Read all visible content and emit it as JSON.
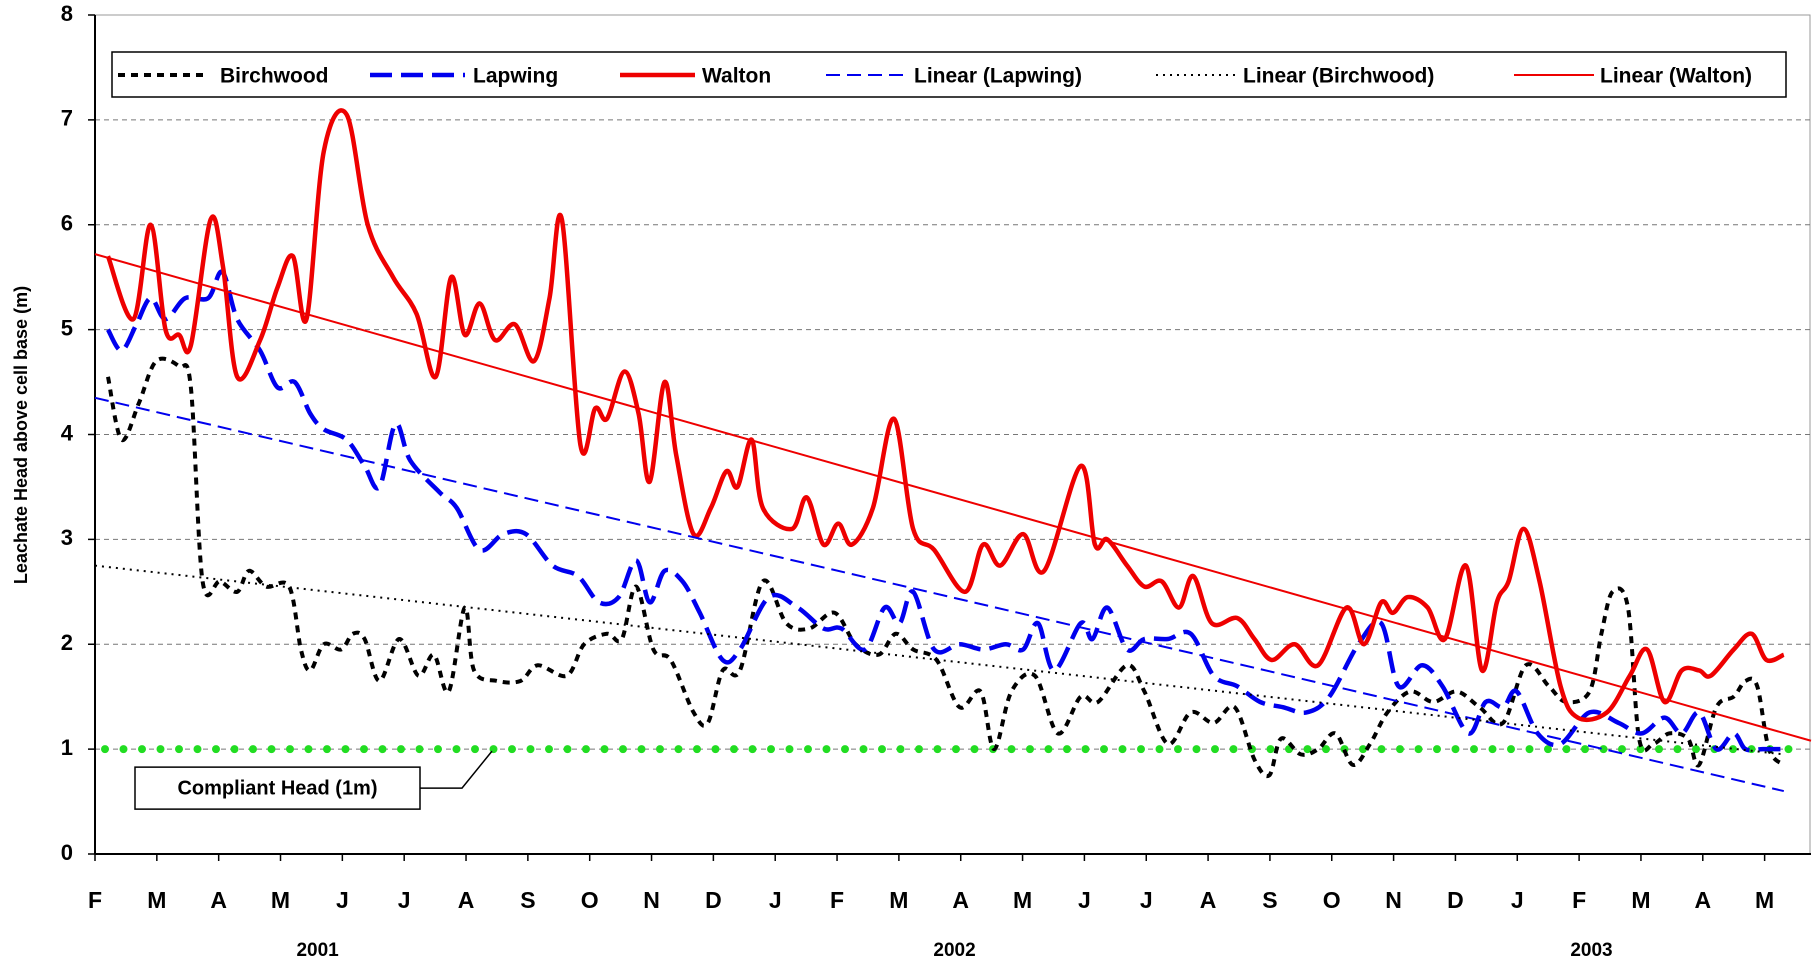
{
  "chart_data": {
    "type": "line",
    "y_label": "Leachate Head above cell base (m)",
    "xlim": [
      0,
      27.75
    ],
    "xticks": [
      {
        "value": 0,
        "label": "F"
      },
      {
        "value": 1,
        "label": "M"
      },
      {
        "value": 2,
        "label": "A"
      },
      {
        "value": 3,
        "label": "M"
      },
      {
        "value": 4,
        "label": "J"
      },
      {
        "value": 5,
        "label": "J"
      },
      {
        "value": 6,
        "label": "A"
      },
      {
        "value": 7,
        "label": "S"
      },
      {
        "value": 8,
        "label": "O"
      },
      {
        "value": 9,
        "label": "N"
      },
      {
        "value": 10,
        "label": "D"
      },
      {
        "value": 11,
        "label": "J"
      },
      {
        "value": 12,
        "label": "F"
      },
      {
        "value": 13,
        "label": "M"
      },
      {
        "value": 14,
        "label": "A"
      },
      {
        "value": 15,
        "label": "M"
      },
      {
        "value": 16,
        "label": "J"
      },
      {
        "value": 17,
        "label": "J"
      },
      {
        "value": 18,
        "label": "A"
      },
      {
        "value": 19,
        "label": "S"
      },
      {
        "value": 20,
        "label": "O"
      },
      {
        "value": 21,
        "label": "N"
      },
      {
        "value": 22,
        "label": "D"
      },
      {
        "value": 23,
        "label": "J"
      },
      {
        "value": 24,
        "label": "F"
      },
      {
        "value": 25,
        "label": "M"
      },
      {
        "value": 26,
        "label": "A"
      },
      {
        "value": 27,
        "label": "M"
      }
    ],
    "year_labels": [
      {
        "value": 3.6,
        "label": "2001"
      },
      {
        "value": 13.9,
        "label": "2002"
      },
      {
        "value": 24.2,
        "label": "2003"
      }
    ],
    "ylim": [
      0,
      8
    ],
    "yticks": [
      0,
      1,
      2,
      3,
      4,
      5,
      6,
      7,
      8
    ],
    "grid": true,
    "legend": "top",
    "reference_lines": [
      {
        "value": 1,
        "label": "Compliant Head (1m)",
        "color": "#22dd22"
      }
    ],
    "series": [
      {
        "name": "Birchwood",
        "color": "#000000",
        "line_style": "dash",
        "x": [
          0.21,
          0.43,
          0.71,
          0.99,
          1.36,
          1.55,
          1.74,
          2.02,
          2.3,
          2.49,
          2.77,
          3.14,
          3.33,
          3.48,
          3.7,
          3.98,
          4.17,
          4.36,
          4.6,
          4.92,
          5.23,
          5.48,
          5.72,
          5.98,
          6.13,
          6.5,
          6.88,
          7.16,
          7.63,
          7.91,
          8.28,
          8.52,
          8.75,
          9.03,
          9.31,
          9.68,
          9.91,
          10.15,
          10.43,
          10.8,
          11.18,
          11.55,
          11.96,
          12.3,
          12.67,
          12.95,
          13.23,
          13.61,
          13.98,
          14.32,
          14.54,
          14.82,
          15.2,
          15.57,
          15.94,
          16.22,
          16.69,
          16.97,
          17.35,
          17.72,
          18.09,
          18.43,
          18.75,
          18.99,
          19.18,
          19.5,
          19.78,
          20.06,
          20.34,
          20.62,
          20.9,
          21.27,
          21.64,
          22.02,
          22.39,
          22.77,
          23.14,
          23.51,
          23.79,
          24.17,
          24.36,
          24.54,
          24.79,
          24.97,
          25.2,
          25.46,
          25.76,
          25.94,
          26.22,
          26.5,
          26.69,
          26.88,
          27.07,
          27.31
        ],
        "values": [
          4.55,
          3.95,
          4.3,
          4.7,
          4.65,
          4.45,
          2.6,
          2.6,
          2.5,
          2.7,
          2.55,
          2.55,
          1.95,
          1.75,
          2.0,
          1.95,
          2.1,
          2.05,
          1.65,
          2.05,
          1.7,
          1.9,
          1.55,
          2.35,
          1.75,
          1.65,
          1.65,
          1.8,
          1.7,
          2.0,
          2.1,
          2.05,
          2.55,
          1.95,
          1.85,
          1.35,
          1.25,
          1.75,
          1.75,
          2.6,
          2.2,
          2.15,
          2.3,
          2.0,
          1.9,
          2.1,
          1.95,
          1.85,
          1.4,
          1.55,
          1.0,
          1.55,
          1.7,
          1.15,
          1.5,
          1.45,
          1.8,
          1.55,
          1.05,
          1.35,
          1.25,
          1.4,
          0.9,
          0.75,
          1.1,
          0.95,
          1.0,
          1.15,
          0.85,
          1.05,
          1.35,
          1.55,
          1.45,
          1.55,
          1.4,
          1.25,
          1.8,
          1.6,
          1.45,
          1.55,
          2.1,
          2.5,
          2.35,
          1.1,
          1.05,
          1.15,
          1.1,
          0.85,
          1.4,
          1.5,
          1.65,
          1.6,
          1.0,
          0.85
        ]
      },
      {
        "name": "Lapwing",
        "color": "#0000ee",
        "line_style": "long-dash",
        "x": [
          0.21,
          0.43,
          0.67,
          0.9,
          1.14,
          1.46,
          1.83,
          2.06,
          2.3,
          2.67,
          2.95,
          3.23,
          3.48,
          3.7,
          4.07,
          4.36,
          4.6,
          4.86,
          5.1,
          5.57,
          5.85,
          6.22,
          6.6,
          6.97,
          7.4,
          7.81,
          8.15,
          8.47,
          8.75,
          8.97,
          9.21,
          9.5,
          9.78,
          10.15,
          10.43,
          10.9,
          11.36,
          11.78,
          12.07,
          12.45,
          12.77,
          13.01,
          13.23,
          13.57,
          13.98,
          14.36,
          14.73,
          15.01,
          15.25,
          15.51,
          15.94,
          16.13,
          16.37,
          16.69,
          16.97,
          17.35,
          17.72,
          18.09,
          18.47,
          18.84,
          19.21,
          19.59,
          19.96,
          20.43,
          20.8,
          21.08,
          21.46,
          21.79,
          22.21,
          22.49,
          22.77,
          22.99,
          23.33,
          23.7,
          24.17,
          24.64,
          25.01,
          25.38,
          25.66,
          25.94,
          26.22,
          26.5,
          26.69,
          26.97,
          27.31
        ],
        "values": [
          5.0,
          4.8,
          5.05,
          5.3,
          5.1,
          5.3,
          5.3,
          5.55,
          5.1,
          4.8,
          4.45,
          4.5,
          4.2,
          4.05,
          3.95,
          3.7,
          3.5,
          4.1,
          3.75,
          3.45,
          3.3,
          2.9,
          3.05,
          3.05,
          2.75,
          2.65,
          2.4,
          2.45,
          2.8,
          2.4,
          2.7,
          2.6,
          2.3,
          1.85,
          1.95,
          2.45,
          2.35,
          2.15,
          2.15,
          1.95,
          2.35,
          2.2,
          2.5,
          1.95,
          2.0,
          1.95,
          2.0,
          1.95,
          2.2,
          1.75,
          2.2,
          2.05,
          2.35,
          1.95,
          2.05,
          2.05,
          2.1,
          1.7,
          1.6,
          1.45,
          1.4,
          1.35,
          1.5,
          2.0,
          2.2,
          1.6,
          1.8,
          1.6,
          1.15,
          1.45,
          1.4,
          1.55,
          1.15,
          1.05,
          1.35,
          1.25,
          1.15,
          1.3,
          1.15,
          1.35,
          1.0,
          1.15,
          1.0,
          1.0,
          1.0
        ]
      },
      {
        "name": "Walton",
        "color": "#ee0000",
        "line_style": "solid",
        "x": [
          0.21,
          0.62,
          0.9,
          1.14,
          1.36,
          1.55,
          1.87,
          2.07,
          2.3,
          2.67,
          2.95,
          3.2,
          3.42,
          3.7,
          4.07,
          4.41,
          4.82,
          5.2,
          5.51,
          5.76,
          5.98,
          6.22,
          6.47,
          6.79,
          7.1,
          7.35,
          7.55,
          7.85,
          8.09,
          8.28,
          8.56,
          8.79,
          8.97,
          9.21,
          9.4,
          9.68,
          9.96,
          10.21,
          10.39,
          10.62,
          10.8,
          11.27,
          11.51,
          11.78,
          12.02,
          12.24,
          12.58,
          12.92,
          13.23,
          13.57,
          14.07,
          14.36,
          14.64,
          15.01,
          15.35,
          15.94,
          16.17,
          16.37,
          16.69,
          16.97,
          17.25,
          17.53,
          17.76,
          18.06,
          18.47,
          18.75,
          19.03,
          19.4,
          19.78,
          20.24,
          20.52,
          20.8,
          20.99,
          21.23,
          21.55,
          21.83,
          22.17,
          22.43,
          22.67,
          22.86,
          23.1,
          23.36,
          23.7,
          23.98,
          24.45,
          24.82,
          25.1,
          25.38,
          25.66,
          25.94,
          26.13,
          26.5,
          26.79,
          27.03,
          27.31
        ],
        "values": [
          5.7,
          5.1,
          6.0,
          5.0,
          4.95,
          4.85,
          6.05,
          5.6,
          4.55,
          4.9,
          5.4,
          5.7,
          5.1,
          6.7,
          7.05,
          6.0,
          5.5,
          5.15,
          4.55,
          5.5,
          4.95,
          5.25,
          4.9,
          5.05,
          4.7,
          5.3,
          6.05,
          3.9,
          4.25,
          4.15,
          4.6,
          4.2,
          3.55,
          4.5,
          3.8,
          3.05,
          3.3,
          3.65,
          3.5,
          3.95,
          3.3,
          3.1,
          3.4,
          2.95,
          3.15,
          2.95,
          3.3,
          4.15,
          3.1,
          2.9,
          2.5,
          2.95,
          2.75,
          3.05,
          2.7,
          3.7,
          2.95,
          3.0,
          2.75,
          2.55,
          2.6,
          2.35,
          2.65,
          2.2,
          2.25,
          2.05,
          1.85,
          2.0,
          1.8,
          2.35,
          2.0,
          2.4,
          2.3,
          2.45,
          2.35,
          2.05,
          2.75,
          1.75,
          2.4,
          2.6,
          3.1,
          2.6,
          1.6,
          1.3,
          1.35,
          1.7,
          1.95,
          1.45,
          1.75,
          1.75,
          1.7,
          1.95,
          2.1,
          1.85,
          1.9
        ]
      },
      {
        "name": "Linear (Lapwing)",
        "color": "#0000ee",
        "line_style": "thin-dash",
        "x": [
          0,
          27.31
        ],
        "values": [
          4.35,
          0.6
        ]
      },
      {
        "name": "Linear (Birchwood)",
        "color": "#000000",
        "line_style": "thin-dot",
        "x": [
          0,
          27.31
        ],
        "values": [
          2.75,
          0.95
        ]
      },
      {
        "name": "Linear (Walton)",
        "color": "#ee0000",
        "line_style": "thin-solid",
        "x": [
          0,
          27.75
        ],
        "values": [
          5.72,
          1.08
        ]
      }
    ]
  }
}
